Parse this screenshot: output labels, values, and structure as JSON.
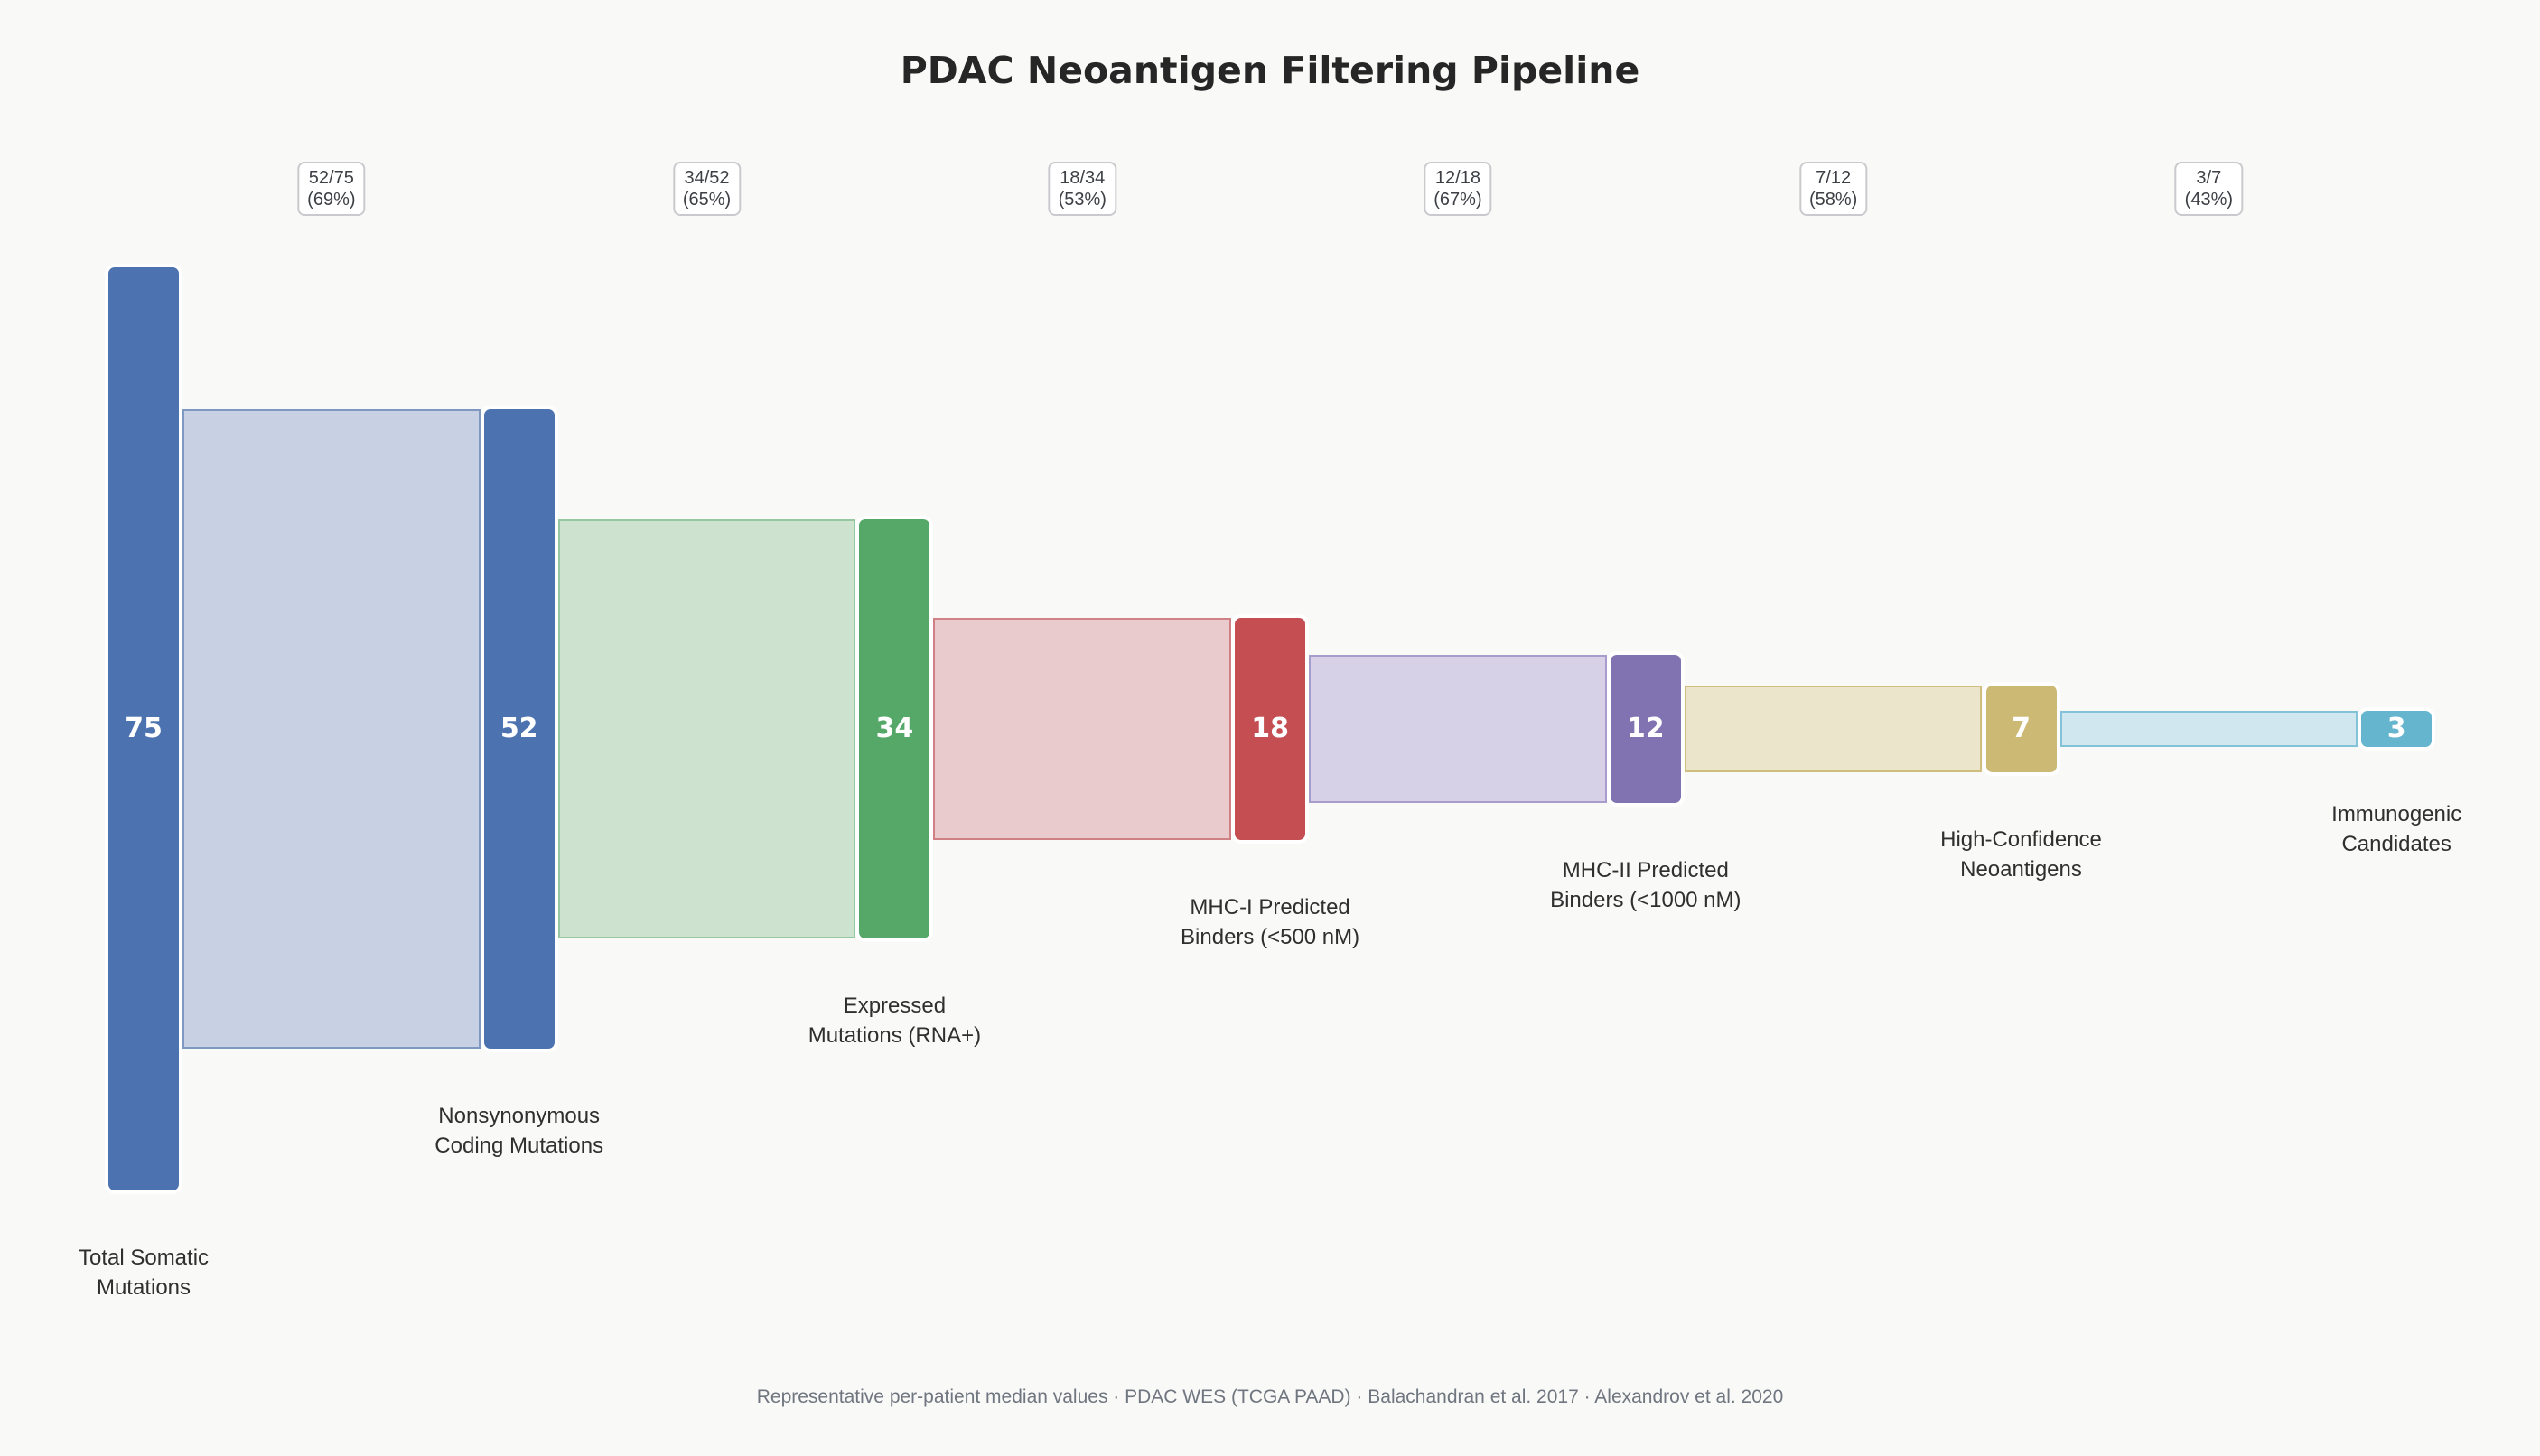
{
  "title": "PDAC Neoantigen Filtering Pipeline",
  "footer": "Representative per-patient median values · PDAC WES (TCGA PAAD) · Balachandran et al. 2017 · Alexandrov et al. 2020",
  "theme": {
    "background": "#f9f9f8",
    "title_color": "#262626",
    "label_color": "#2f2f2f",
    "badge_border_color": "#c9cacd",
    "badge_text_color": "#3c3f44",
    "footer_color": "#70767f",
    "bar_value_text_color": "#ffffff"
  },
  "chart_data": {
    "type": "funnel",
    "title": "PDAC Neoantigen Filtering Pipeline",
    "legend": "none",
    "grid": "off",
    "orientation": "horizontal stages, vertically centered bars",
    "stages": [
      {
        "id": "total-somatic-mutations",
        "label": "Total Somatic\nMutations",
        "value": 75,
        "color": "#4c72b0",
        "tint": "#c7d1e3",
        "edge": "#7e98c2"
      },
      {
        "id": "nonsynonymous-coding-mutations",
        "label": "Nonsynonymous\nCoding Mutations",
        "value": 52,
        "color": "#4c72b0",
        "tint": "#c7d1e3",
        "edge": "#7e98c2"
      },
      {
        "id": "expressed-mutations-rna",
        "label": "Expressed\nMutations (RNA+)",
        "value": 34,
        "color": "#55a868",
        "tint": "#cee3cf",
        "edge": "#97c7a1"
      },
      {
        "id": "mhc1-predicted-binders",
        "label": "MHC-I Predicted\nBinders (<500 nM)",
        "value": 18,
        "color": "#c44e52",
        "tint": "#e9cacd",
        "edge": "#cf8186"
      },
      {
        "id": "mhc2-predicted-binders",
        "label": "MHC-II Predicted\nBinders (<1000 nM)",
        "value": 12,
        "color": "#8172b2",
        "tint": "#d6d1e6",
        "edge": "#a79ccb"
      },
      {
        "id": "high-confidence-neoantigens",
        "label": "High-Confidence\nNeoantigens",
        "value": 7,
        "color": "#ccb974",
        "tint": "#ebe5cc",
        "edge": "#d0be7e"
      },
      {
        "id": "immunogenic-candidates",
        "label": "Immunogenic\nCandidates",
        "value": 3,
        "color": "#64b5cd",
        "tint": "#d0e7ef",
        "edge": "#84c3d7"
      }
    ],
    "conversions": [
      {
        "ratio": "52/75",
        "percent": "(69%)"
      },
      {
        "ratio": "34/52",
        "percent": "(65%)"
      },
      {
        "ratio": "18/34",
        "percent": "(53%)"
      },
      {
        "ratio": "12/18",
        "percent": "(67%)"
      },
      {
        "ratio": "7/12",
        "percent": "(58%)"
      },
      {
        "ratio": "3/7",
        "percent": "(43%)"
      }
    ]
  }
}
